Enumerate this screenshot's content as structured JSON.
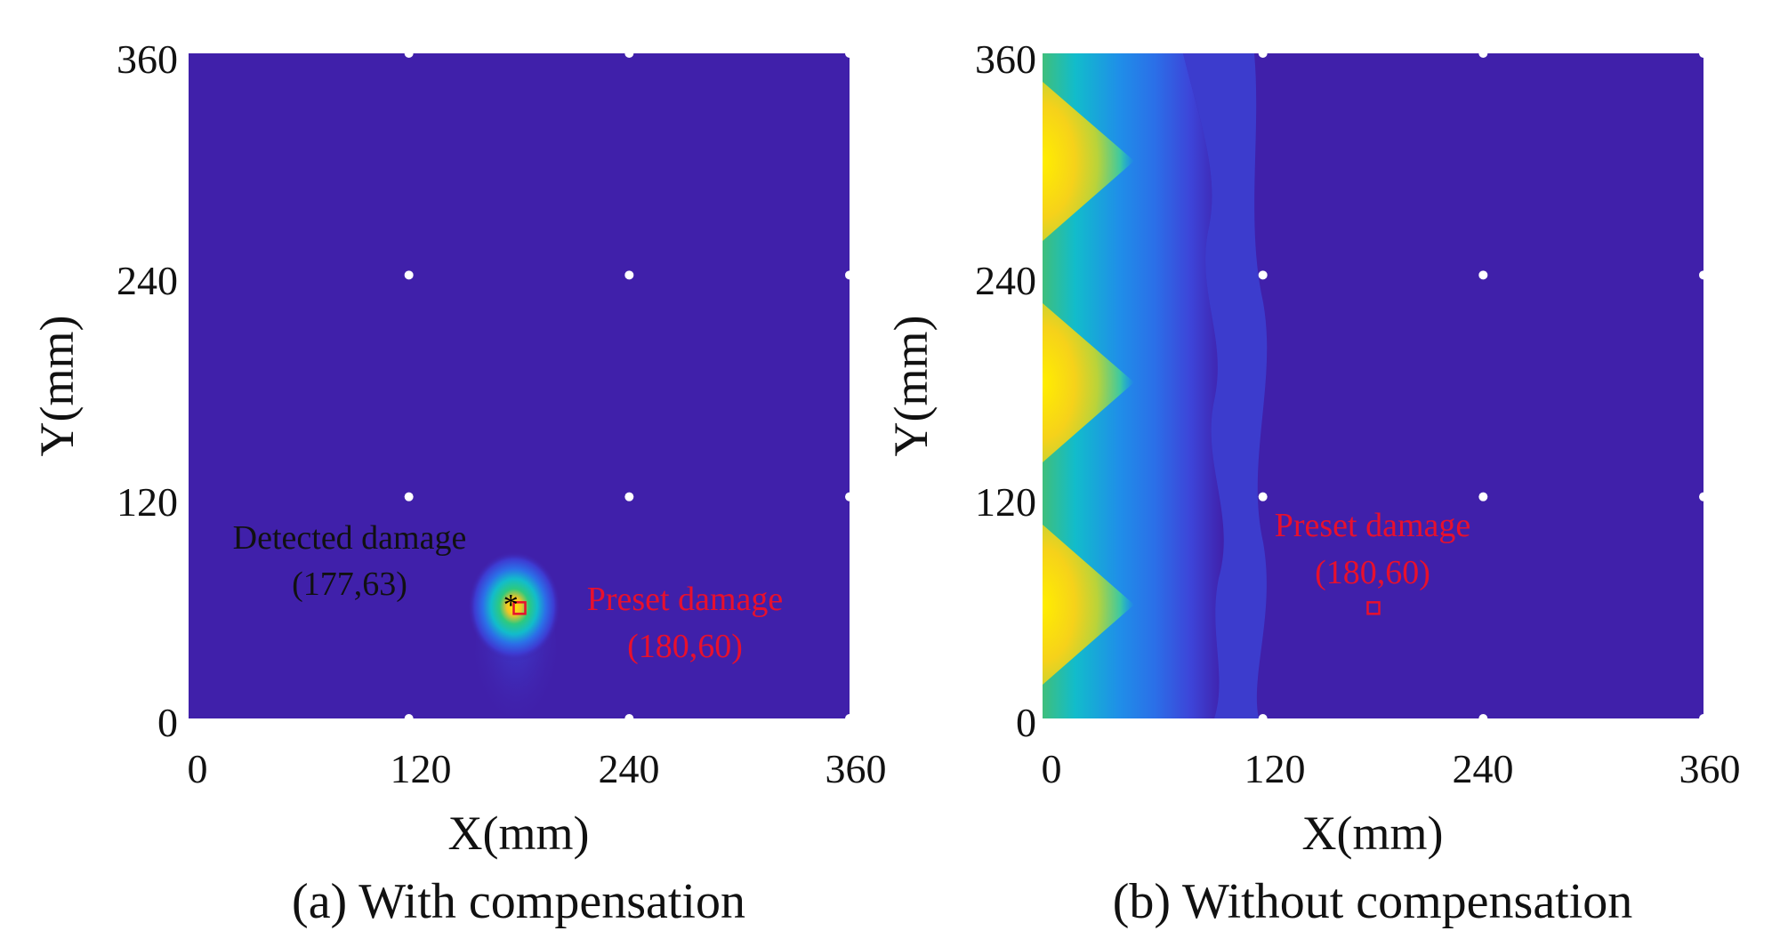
{
  "colors": {
    "background_field": "#4020aa",
    "sensor_dots": "#ffffff",
    "preset_marker": "#e8102d",
    "detected_marker": "#000000",
    "annotation_red": "#e8102d",
    "colormap": [
      "#3f1fa9",
      "#3b4fe6",
      "#1f8fe8",
      "#12bccb",
      "#2dc97f",
      "#9fd23a",
      "#f2d31a",
      "#f4b52e",
      "#ffee00"
    ]
  },
  "chart_data": [
    {
      "type": "heatmap",
      "caption": "(a) With compensation",
      "xlabel": "X(mm)",
      "ylabel": "Y(mm)",
      "xlim": [
        0,
        360
      ],
      "ylim": [
        0,
        360
      ],
      "xticks": [
        "0",
        "120",
        "240",
        "360"
      ],
      "yticks": [
        "0",
        "120",
        "240",
        "360"
      ],
      "sensors": [
        [
          120,
          0
        ],
        [
          240,
          0
        ],
        [
          360,
          0
        ],
        [
          120,
          120
        ],
        [
          240,
          120
        ],
        [
          360,
          120
        ],
        [
          120,
          240
        ],
        [
          240,
          240
        ],
        [
          360,
          240
        ],
        [
          120,
          360
        ],
        [
          240,
          360
        ],
        [
          360,
          360
        ]
      ],
      "hotspots": [
        {
          "x": 177,
          "y": 63,
          "intensity": 1.0
        }
      ],
      "preset_damage": {
        "label": "Preset damage",
        "coords": "(180,60)",
        "x": 180,
        "y": 60
      },
      "detected_damage": {
        "label": "Detected damage",
        "coords": "(177,63)",
        "x": 177,
        "y": 63
      }
    },
    {
      "type": "heatmap",
      "caption": "(b) Without compensation",
      "xlabel": "X(mm)",
      "ylabel": "Y(mm)",
      "xlim": [
        0,
        360
      ],
      "ylim": [
        0,
        360
      ],
      "xticks": [
        "0",
        "120",
        "240",
        "360"
      ],
      "yticks": [
        "0",
        "120",
        "240",
        "360"
      ],
      "sensors": [
        [
          120,
          0
        ],
        [
          240,
          0
        ],
        [
          360,
          0
        ],
        [
          120,
          120
        ],
        [
          240,
          120
        ],
        [
          360,
          120
        ],
        [
          120,
          240
        ],
        [
          240,
          240
        ],
        [
          360,
          240
        ],
        [
          120,
          360
        ],
        [
          240,
          360
        ],
        [
          360,
          360
        ]
      ],
      "hotspots": [
        {
          "x": 0,
          "y": 300,
          "intensity": 1.0
        },
        {
          "x": 0,
          "y": 180,
          "intensity": 1.0
        },
        {
          "x": 0,
          "y": 60,
          "intensity": 1.0
        }
      ],
      "preset_damage": {
        "label": "Preset damage",
        "coords": "(180,60)",
        "x": 180,
        "y": 60
      }
    }
  ]
}
